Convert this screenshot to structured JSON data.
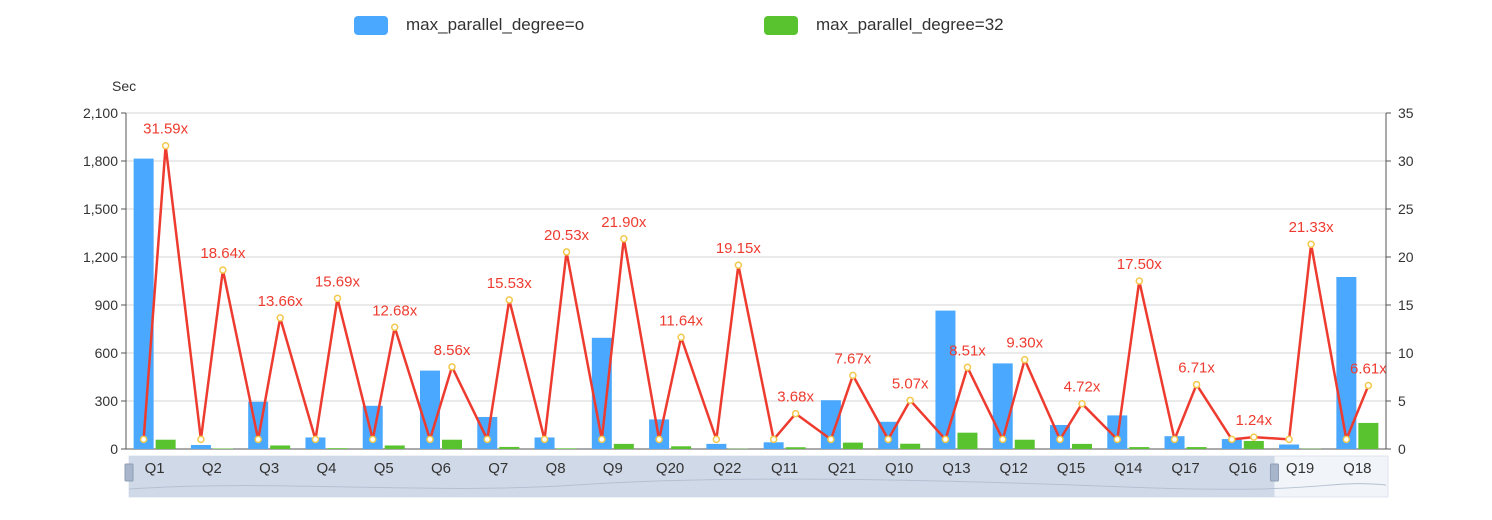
{
  "chart_data": {
    "type": "bar",
    "ylabel": "Sec",
    "ylim": [
      0,
      2100
    ],
    "yticks": [
      "0",
      "300",
      "600",
      "900",
      "1,200",
      "1,500",
      "1,800",
      "2,100"
    ],
    "y2lim": [
      0,
      35
    ],
    "y2ticks": [
      "0",
      "5",
      "10",
      "15",
      "20",
      "25",
      "30",
      "35"
    ],
    "grid": true,
    "legend_position": "top",
    "categories": [
      "Q1",
      "Q2",
      "Q3",
      "Q4",
      "Q5",
      "Q6",
      "Q7",
      "Q8",
      "Q9",
      "Q20",
      "Q22",
      "Q11",
      "Q21",
      "Q10",
      "Q13",
      "Q12",
      "Q15",
      "Q14",
      "Q17",
      "Q16",
      "Q19",
      "Q18"
    ],
    "series": [
      {
        "name": "max_parallel_degree=o",
        "color": "#4aa8ff",
        "values": [
          1815,
          25,
          295,
          72,
          270,
          490,
          200,
          72,
          695,
          185,
          32,
          42,
          305,
          170,
          865,
          535,
          150,
          210,
          80,
          62,
          28,
          1075
        ]
      },
      {
        "name": "max_parallel_degree=32",
        "color": "#58c22f",
        "values": [
          58,
          3,
          22,
          5,
          22,
          58,
          13,
          4,
          32,
          17,
          2,
          11,
          40,
          33,
          102,
          58,
          32,
          12,
          12,
          50,
          2,
          163
        ]
      }
    ],
    "ratio_line": {
      "color": "#ee3b2f",
      "labels": [
        "31.59x",
        "18.64x",
        "13.66x",
        "15.69x",
        "12.68x",
        "8.56x",
        "15.53x",
        "20.53x",
        "21.90x",
        "11.64x",
        "19.15x",
        "3.68x",
        "7.67x",
        "5.07x",
        "8.51x",
        "9.30x",
        "4.72x",
        "17.50x",
        "6.71x",
        "1.24x",
        "21.33x",
        "6.61x"
      ],
      "values": [
        31.59,
        18.64,
        13.66,
        15.69,
        12.68,
        8.56,
        15.53,
        20.53,
        21.9,
        11.64,
        19.15,
        3.68,
        7.67,
        5.07,
        8.51,
        9.3,
        4.72,
        17.5,
        6.71,
        1.24,
        21.33,
        6.61
      ],
      "baseline": 1
    },
    "zoom_window": {
      "start_category": "Q1",
      "end_category": "Q16"
    }
  }
}
